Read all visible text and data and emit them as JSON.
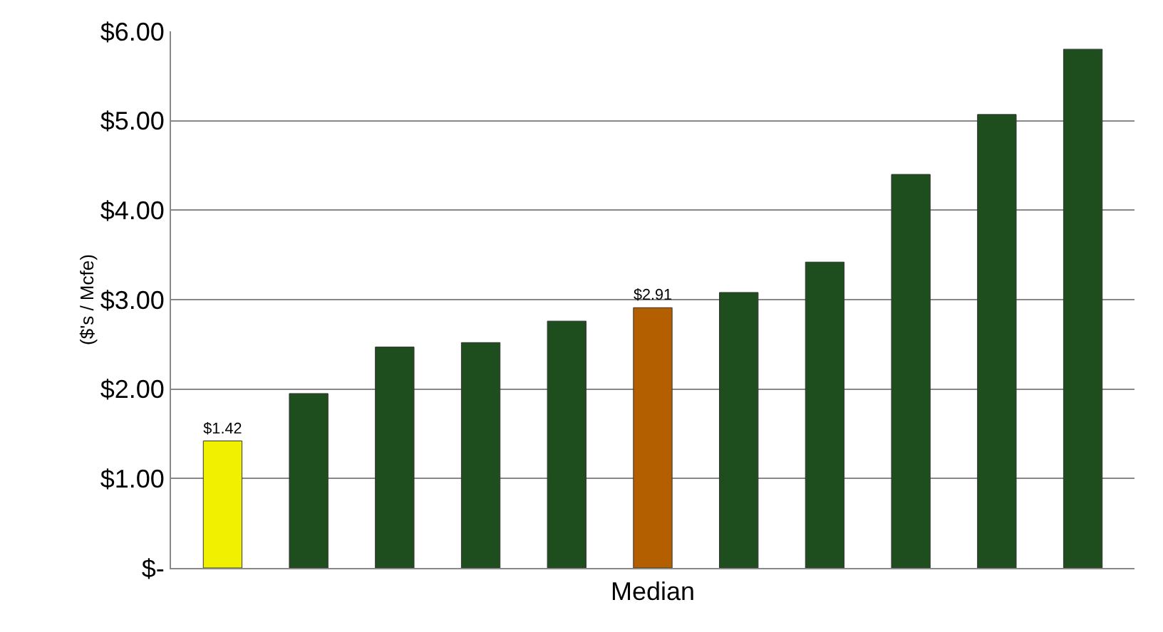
{
  "chart_data": {
    "type": "bar",
    "ylabel": "($'s / Mcfe)",
    "categories": [
      null,
      null,
      null,
      null,
      null,
      "Median",
      null,
      null,
      null,
      null,
      null
    ],
    "values": [
      1.42,
      1.95,
      2.47,
      2.52,
      2.76,
      2.91,
      3.08,
      3.42,
      4.4,
      5.07,
      5.8
    ],
    "colors": [
      "#f0f000",
      "#1e4d1e",
      "#1e4d1e",
      "#1e4d1e",
      "#1e4d1e",
      "#b35f00",
      "#1e4d1e",
      "#1e4d1e",
      "#1e4d1e",
      "#1e4d1e",
      "#1e4d1e"
    ],
    "value_labels": [
      "$1.42",
      null,
      null,
      null,
      null,
      "$2.91",
      null,
      null,
      null,
      null,
      null
    ],
    "ylim": [
      0,
      6
    ],
    "yticks": [
      {
        "value": 0,
        "label": "$-"
      },
      {
        "value": 1,
        "label": "$1.00"
      },
      {
        "value": 2,
        "label": "$2.00"
      },
      {
        "value": 3,
        "label": "$3.00"
      },
      {
        "value": 4,
        "label": "$4.00"
      },
      {
        "value": 5,
        "label": "$5.00"
      },
      {
        "value": 6,
        "label": "$6.00"
      }
    ],
    "grid": "y",
    "legend": false
  }
}
